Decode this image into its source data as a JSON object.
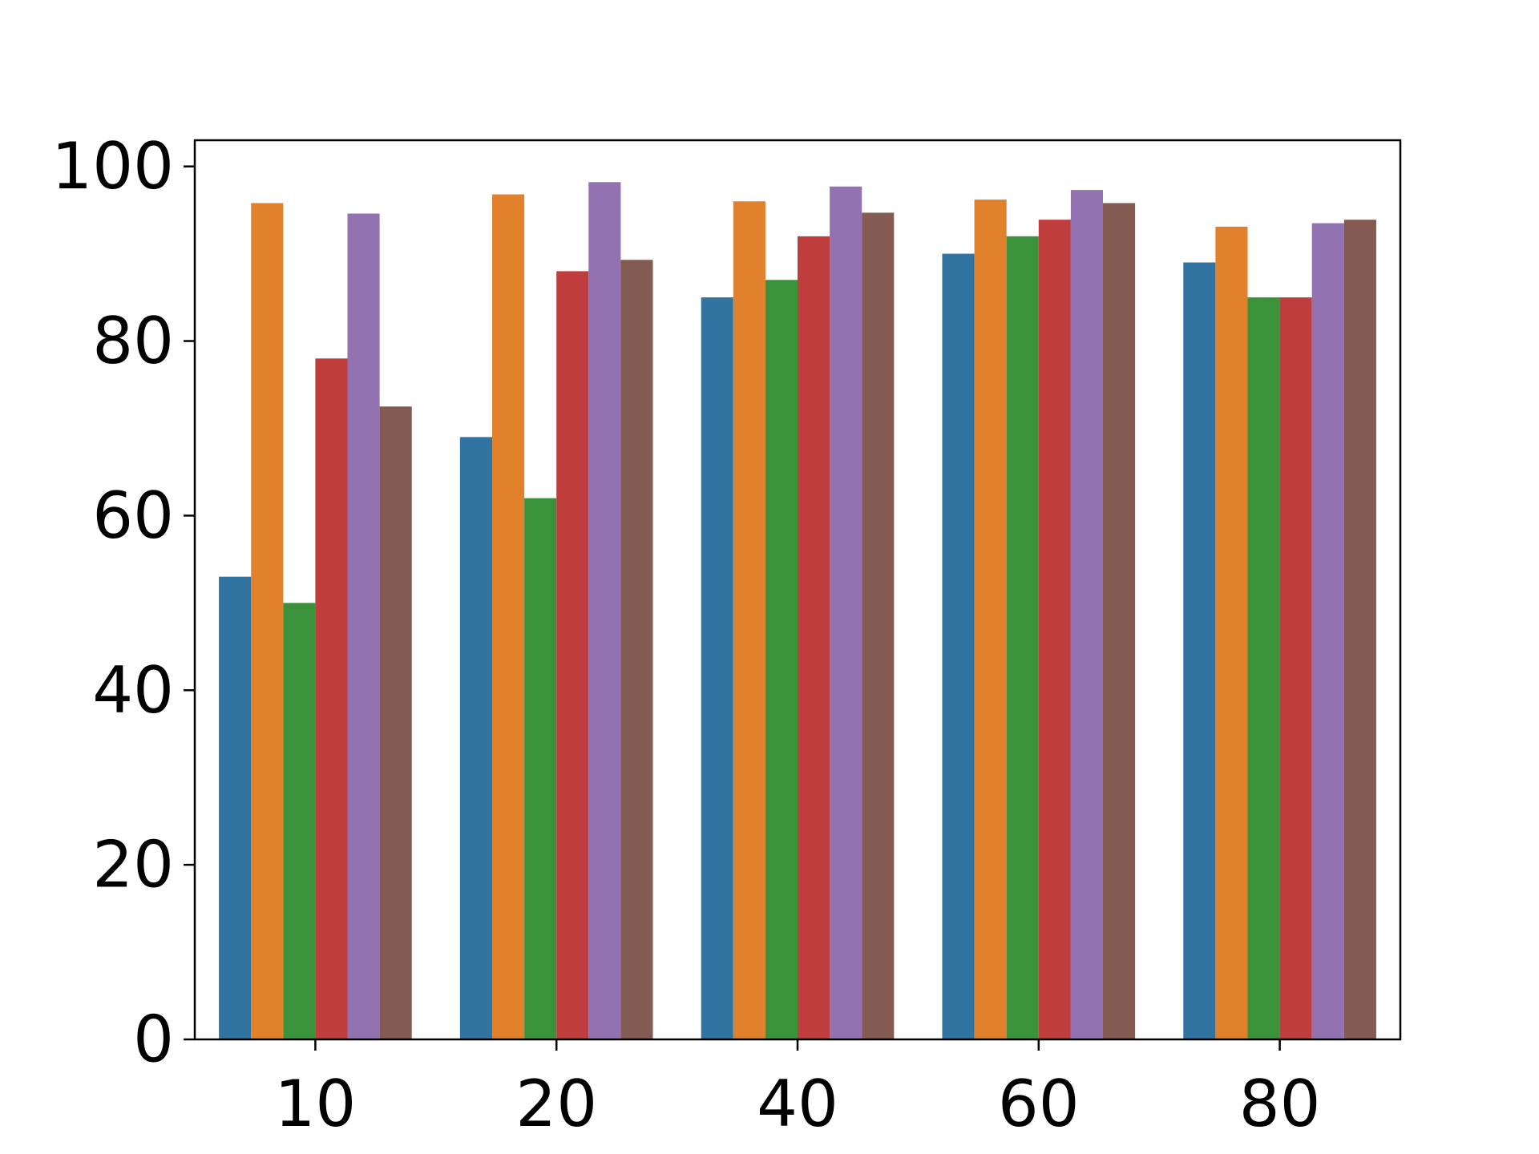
{
  "chart_data": {
    "type": "bar",
    "title": "",
    "xlabel": "",
    "ylabel": "",
    "categories": [
      "10",
      "20",
      "40",
      "60",
      "80"
    ],
    "ylim": [
      0,
      103
    ],
    "yticks": [
      0,
      20,
      40,
      60,
      80,
      100
    ],
    "grid": false,
    "legend": "none",
    "series": [
      {
        "color": "#3274a1",
        "values": [
          53.0,
          69.0,
          85.0,
          90.0,
          89.0
        ]
      },
      {
        "color": "#e1812c",
        "values": [
          95.8,
          96.8,
          96.0,
          96.2,
          93.1
        ]
      },
      {
        "color": "#3a923a",
        "values": [
          50.0,
          62.0,
          87.0,
          92.0,
          85.0
        ]
      },
      {
        "color": "#c03d3e",
        "values": [
          78.0,
          88.0,
          92.0,
          93.9,
          85.0
        ]
      },
      {
        "color": "#9372b2",
        "values": [
          94.6,
          98.2,
          97.7,
          97.3,
          93.5
        ]
      },
      {
        "color": "#845b53",
        "values": [
          72.5,
          89.3,
          94.7,
          95.8,
          93.9
        ]
      }
    ]
  }
}
